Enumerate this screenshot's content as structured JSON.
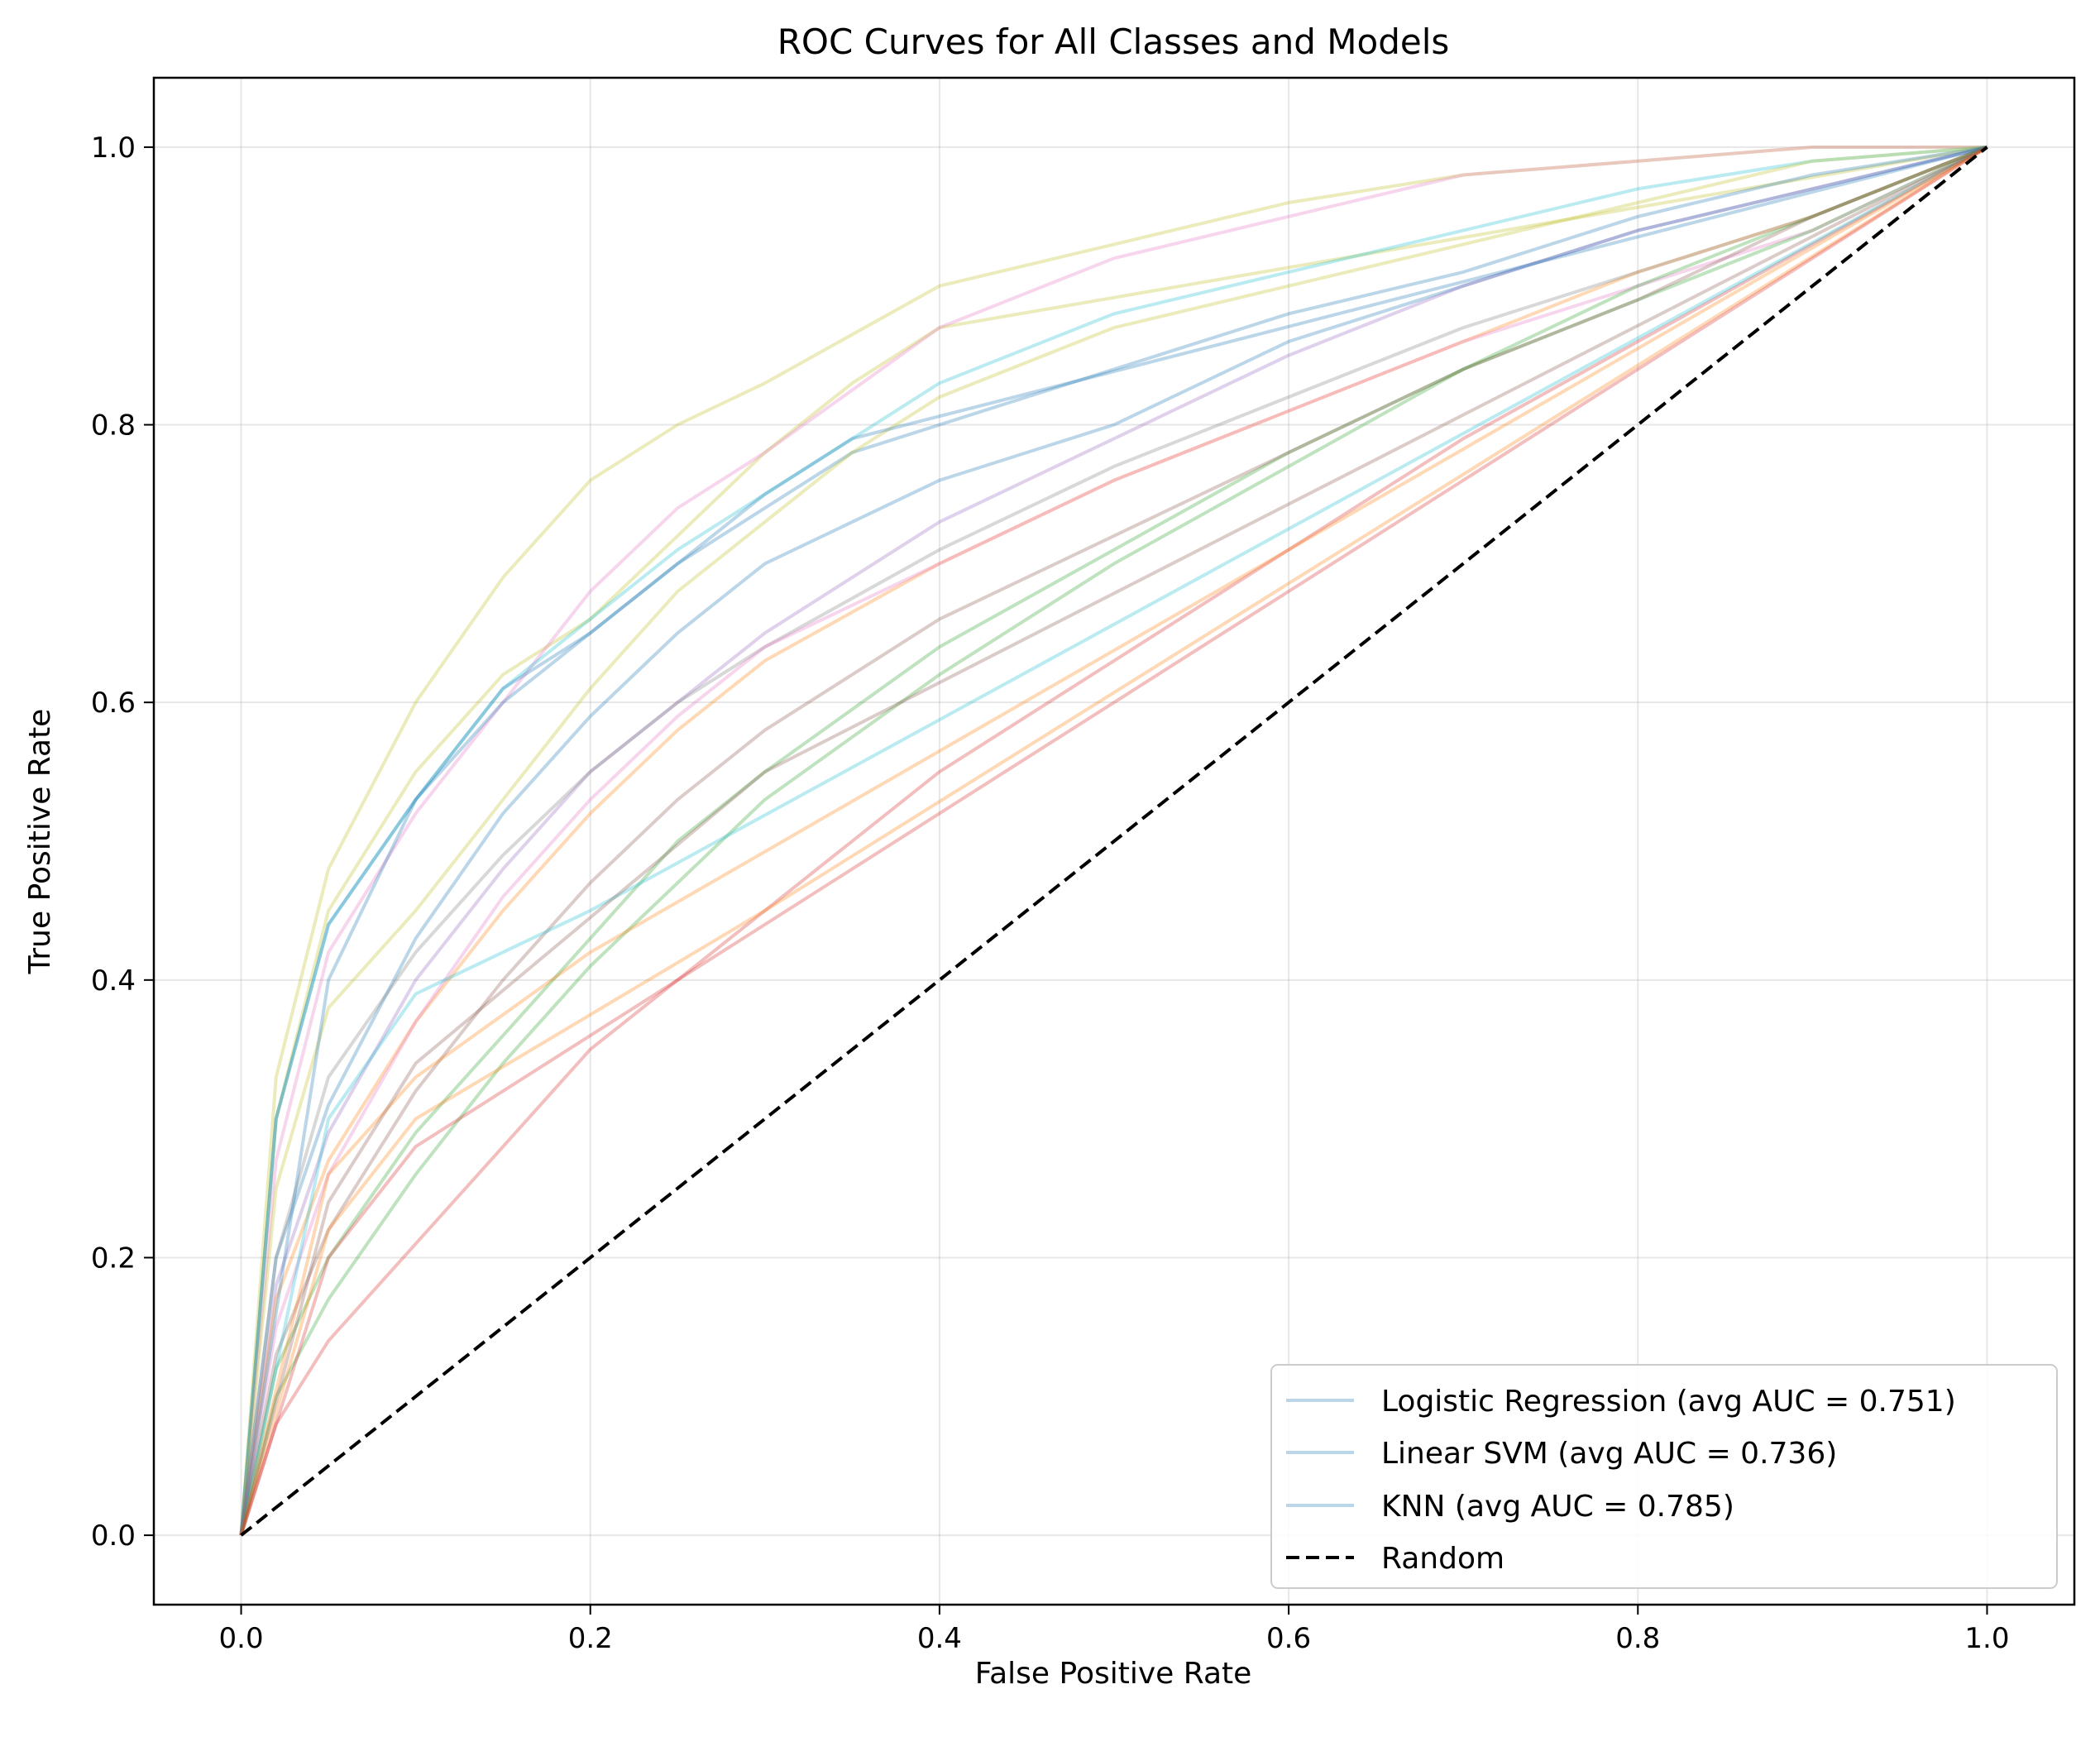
{
  "chart_data": {
    "type": "line",
    "title": "ROC Curves for All Classes and Models",
    "xlabel": "False Positive Rate",
    "ylabel": "True Positive Rate",
    "xlim": [
      -0.05,
      1.05
    ],
    "ylim": [
      -0.05,
      1.05
    ],
    "xticks": [
      0.0,
      0.2,
      0.4,
      0.6,
      0.8,
      1.0
    ],
    "yticks": [
      0.0,
      0.2,
      0.4,
      0.6,
      0.8,
      1.0
    ],
    "xtick_labels": [
      "0.0",
      "0.2",
      "0.4",
      "0.6",
      "0.8",
      "1.0"
    ],
    "ytick_labels": [
      "0.0",
      "0.2",
      "0.4",
      "0.6",
      "0.8",
      "1.0"
    ],
    "grid": true,
    "legend_position": "lower-right",
    "legend": [
      {
        "label": "Logistic Regression (avg AUC = 0.751)",
        "color": "#1f77b4",
        "style": "solid"
      },
      {
        "label": "Linear SVM (avg AUC = 0.736)",
        "color": "#1f77b4",
        "style": "solid"
      },
      {
        "label": "KNN (avg AUC = 0.785)",
        "color": "#1f77b4",
        "style": "solid"
      },
      {
        "label": "Random",
        "color": "#000000",
        "style": "dashed"
      }
    ],
    "random_line": {
      "x": [
        0,
        1
      ],
      "y": [
        0,
        1
      ]
    },
    "series": [
      {
        "color": "#bcbd22",
        "x": [
          0,
          0.02,
          0.05,
          0.1,
          0.15,
          0.2,
          0.25,
          0.3,
          0.4,
          0.5,
          0.6,
          0.7,
          0.8,
          0.9,
          1
        ],
        "y": [
          0,
          0.33,
          0.48,
          0.6,
          0.69,
          0.76,
          0.8,
          0.83,
          0.9,
          0.93,
          0.96,
          0.98,
          0.99,
          1,
          1
        ]
      },
      {
        "color": "#bcbd22",
        "x": [
          0,
          0.02,
          0.05,
          0.1,
          0.15,
          0.2,
          0.25,
          0.3,
          0.35,
          0.4,
          1
        ],
        "y": [
          0,
          0.3,
          0.45,
          0.55,
          0.62,
          0.66,
          0.72,
          0.78,
          0.83,
          0.87,
          1
        ]
      },
      {
        "color": "#e377c2",
        "x": [
          0,
          0.02,
          0.05,
          0.1,
          0.15,
          0.2,
          0.25,
          0.3,
          0.4,
          0.5,
          0.6,
          0.7,
          0.8,
          0.9,
          1
        ],
        "y": [
          0,
          0.27,
          0.42,
          0.52,
          0.6,
          0.68,
          0.74,
          0.78,
          0.87,
          0.92,
          0.95,
          0.98,
          0.99,
          1,
          1
        ]
      },
      {
        "color": "#17becf",
        "x": [
          0,
          0.02,
          0.05,
          0.1,
          0.15,
          0.2,
          0.25,
          0.3,
          0.35,
          0.4,
          0.5,
          0.6,
          0.7,
          0.8,
          0.9,
          1
        ],
        "y": [
          0,
          0.3,
          0.44,
          0.53,
          0.61,
          0.66,
          0.71,
          0.75,
          0.79,
          0.83,
          0.88,
          0.91,
          0.94,
          0.97,
          0.99,
          1
        ]
      },
      {
        "color": "#1f77b4",
        "x": [
          0,
          0.02,
          0.05,
          0.1,
          0.15,
          0.2,
          0.25,
          0.3,
          0.35,
          0.5,
          0.6,
          0.7,
          0.8,
          0.9,
          1
        ],
        "y": [
          0,
          0.3,
          0.44,
          0.53,
          0.61,
          0.65,
          0.7,
          0.74,
          0.78,
          0.84,
          0.88,
          0.91,
          0.95,
          0.98,
          1
        ]
      },
      {
        "color": "#bcbd22",
        "x": [
          0,
          0.02,
          0.05,
          0.1,
          0.15,
          0.2,
          0.25,
          0.3,
          0.35,
          0.4,
          0.5,
          0.6,
          0.7,
          0.8,
          0.9,
          1
        ],
        "y": [
          0,
          0.25,
          0.38,
          0.45,
          0.53,
          0.61,
          0.68,
          0.73,
          0.78,
          0.82,
          0.87,
          0.9,
          0.93,
          0.96,
          0.99,
          1
        ]
      },
      {
        "color": "#1f77b4",
        "x": [
          0,
          0.02,
          0.05,
          0.1,
          0.15,
          0.2,
          0.25,
          0.3,
          0.4,
          0.5,
          0.6,
          0.7,
          0.8,
          0.9,
          1
        ],
        "y": [
          0,
          0.2,
          0.31,
          0.43,
          0.52,
          0.59,
          0.65,
          0.7,
          0.76,
          0.8,
          0.86,
          0.9,
          0.94,
          0.97,
          1
        ]
      },
      {
        "color": "#9467bd",
        "x": [
          0,
          0.02,
          0.05,
          0.1,
          0.15,
          0.2,
          0.25,
          0.3,
          0.4,
          0.5,
          0.6,
          0.7,
          0.8,
          0.9,
          1
        ],
        "y": [
          0,
          0.18,
          0.29,
          0.4,
          0.48,
          0.55,
          0.6,
          0.65,
          0.73,
          0.79,
          0.85,
          0.9,
          0.94,
          0.97,
          1
        ]
      },
      {
        "color": "#ff7f0e",
        "x": [
          0,
          0.02,
          0.05,
          0.1,
          0.15,
          0.2,
          0.25,
          0.3,
          0.4,
          0.5,
          0.6,
          0.7,
          0.8,
          0.9,
          1
        ],
        "y": [
          0,
          0.17,
          0.27,
          0.37,
          0.45,
          0.52,
          0.58,
          0.63,
          0.7,
          0.76,
          0.81,
          0.86,
          0.91,
          0.95,
          1
        ]
      },
      {
        "color": "#7f7f7f",
        "x": [
          0,
          0.02,
          0.05,
          0.1,
          0.15,
          0.2,
          0.25,
          0.3,
          0.4,
          0.5,
          0.6,
          0.7,
          0.8,
          0.9,
          1
        ],
        "y": [
          0,
          0.2,
          0.33,
          0.42,
          0.49,
          0.55,
          0.6,
          0.64,
          0.71,
          0.77,
          0.82,
          0.87,
          0.91,
          0.95,
          1
        ]
      },
      {
        "color": "#e377c2",
        "x": [
          0,
          0.02,
          0.05,
          0.1,
          0.15,
          0.2,
          0.25,
          0.3,
          0.4,
          0.5,
          0.6,
          0.7,
          0.8,
          0.9,
          1
        ],
        "y": [
          0,
          0.15,
          0.26,
          0.37,
          0.46,
          0.53,
          0.59,
          0.64,
          0.7,
          0.76,
          0.81,
          0.86,
          0.9,
          0.94,
          1
        ]
      },
      {
        "color": "#2ca02c",
        "x": [
          0,
          0.02,
          0.05,
          0.1,
          0.15,
          0.2,
          0.25,
          0.3,
          0.4,
          0.5,
          0.6,
          0.7,
          0.8,
          0.9,
          1
        ],
        "y": [
          0,
          0.12,
          0.2,
          0.29,
          0.36,
          0.43,
          0.5,
          0.55,
          0.64,
          0.71,
          0.78,
          0.84,
          0.9,
          0.95,
          1
        ]
      },
      {
        "color": "#2ca02c",
        "x": [
          0,
          0.02,
          0.05,
          0.1,
          0.15,
          0.2,
          0.25,
          0.3,
          0.4,
          0.5,
          0.6,
          0.7,
          0.8,
          0.9,
          1
        ],
        "y": [
          0,
          0.1,
          0.17,
          0.26,
          0.34,
          0.41,
          0.47,
          0.53,
          0.62,
          0.7,
          0.77,
          0.84,
          0.89,
          0.94,
          1
        ]
      },
      {
        "color": "#d62728",
        "x": [
          0,
          0.02,
          0.05,
          0.1,
          0.15,
          0.2,
          0.25,
          0.3,
          0.4,
          0.5,
          0.6,
          0.7,
          0.8,
          0.9,
          1
        ],
        "y": [
          0,
          0.08,
          0.14,
          0.21,
          0.28,
          0.35,
          0.4,
          0.45,
          0.55,
          0.63,
          0.71,
          0.79,
          0.86,
          0.93,
          1
        ]
      },
      {
        "color": "#8c564b",
        "x": [
          0,
          0.02,
          0.05,
          0.1,
          0.15,
          0.2,
          0.25,
          0.3,
          0.4,
          0.5,
          0.6,
          0.7,
          0.8,
          0.9,
          1
        ],
        "y": [
          0,
          0.13,
          0.22,
          0.32,
          0.4,
          0.47,
          0.53,
          0.58,
          0.66,
          0.72,
          0.78,
          0.84,
          0.89,
          0.95,
          1
        ]
      },
      {
        "color": "#1f77b4",
        "x": [
          0,
          0.05,
          0.1,
          0.15,
          0.2,
          0.25,
          0.3,
          0.35,
          1
        ],
        "y": [
          0,
          0.4,
          0.53,
          0.6,
          0.65,
          0.7,
          0.75,
          0.79,
          1
        ]
      },
      {
        "color": "#17becf",
        "x": [
          0,
          0.05,
          0.1,
          0.2,
          1
        ],
        "y": [
          0,
          0.3,
          0.39,
          0.45,
          1
        ]
      },
      {
        "color": "#ff7f0e",
        "x": [
          0,
          0.05,
          0.1,
          0.2,
          1
        ],
        "y": [
          0,
          0.26,
          0.33,
          0.42,
          1
        ]
      },
      {
        "color": "#ff7f0e",
        "x": [
          0,
          0.05,
          0.1,
          0.3,
          1
        ],
        "y": [
          0,
          0.22,
          0.3,
          0.45,
          1
        ]
      },
      {
        "color": "#d62728",
        "x": [
          0,
          0.05,
          0.1,
          0.25,
          1
        ],
        "y": [
          0,
          0.2,
          0.28,
          0.4,
          1
        ]
      },
      {
        "color": "#8c564b",
        "x": [
          0,
          0.05,
          0.1,
          0.3,
          1
        ],
        "y": [
          0,
          0.24,
          0.34,
          0.55,
          1
        ]
      }
    ]
  }
}
